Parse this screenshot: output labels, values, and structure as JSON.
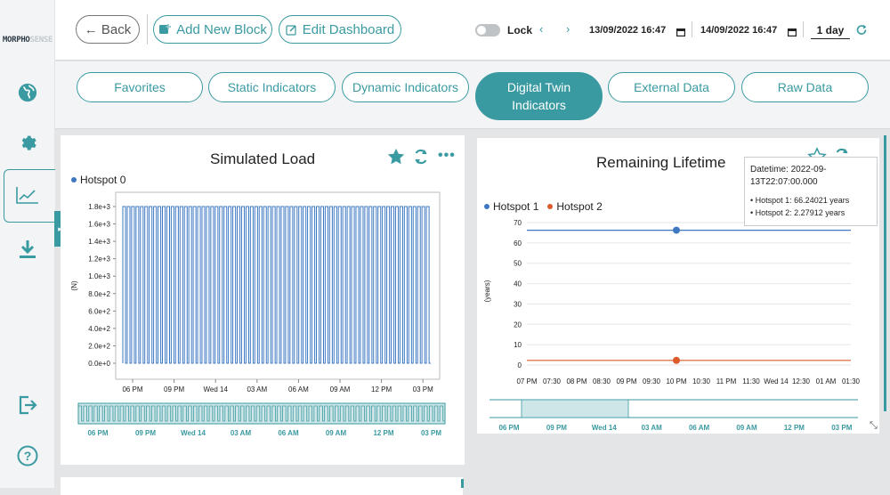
{
  "sidebar": {
    "logo_dark": "MORPHO",
    "logo_light": "SENSE",
    "icons": [
      "globe-icon",
      "gear-icon",
      "chart-line-icon",
      "download-icon",
      "logout-icon",
      "help-icon"
    ]
  },
  "topbar": {
    "back_label": "← Back",
    "add_block_label": "Add New Block",
    "edit_dashboard_label": "Edit Dashboard",
    "lock_label": "Lock",
    "start_datetime": "13/09/2022 16:47",
    "end_datetime": "14/09/2022 16:47",
    "range": "1 day"
  },
  "tabs": [
    "Favorites",
    "Static Indicators",
    "Dynamic Indicators",
    "Digital Twin Indicators",
    "External Data",
    "Raw Data"
  ],
  "active_tab": "Digital Twin Indicators",
  "colors": {
    "accent": "#3a9aa1",
    "series_blue": "#3e78c2",
    "series_orange": "#dd5a2b"
  },
  "card1": {
    "title": "Simulated Load",
    "legend": "Hotspot 0",
    "ylabel": "(N)"
  },
  "card2": {
    "title": "Remaining Lifetime",
    "legend": [
      "Hotspot 1",
      "Hotspot 2"
    ],
    "ylabel": "(years)",
    "tooltip": {
      "line1": "Datetime: 2022-09-",
      "line2": "13T22:07:00.000",
      "row1": "• Hotspot 1: 66.24021 years",
      "row2": "• Hotspot 2: 2.27912 years"
    }
  },
  "chart_data": [
    {
      "type": "line",
      "title": "Simulated Load",
      "series": [
        {
          "name": "Hotspot 0",
          "values_description": "square wave alternating between approx 0 and 1.8e+3, ~70 cycles over the day"
        }
      ],
      "y_min": 0,
      "y_max": 1800,
      "ylabel": "(N)",
      "yticks": [
        "0.0e+0",
        "2.0e+2",
        "4.0e+2",
        "6.0e+2",
        "8.0e+2",
        "1.0e+3",
        "1.2e+3",
        "1.4e+3",
        "1.6e+3",
        "1.8e+3"
      ],
      "ytick_values": [
        0,
        200,
        400,
        600,
        800,
        1000,
        1200,
        1400,
        1600,
        1800
      ],
      "xticks": [
        "06 PM",
        "09 PM",
        "Wed 14",
        "03 AM",
        "06 AM",
        "09 AM",
        "12 PM",
        "03 PM"
      ],
      "navigator_xticks": [
        "06 PM",
        "09 PM",
        "Wed 14",
        "03 AM",
        "06 AM",
        "09 AM",
        "12 PM",
        "03 PM"
      ],
      "high": 1800,
      "low": 0
    },
    {
      "type": "line",
      "title": "Remaining Lifetime",
      "series": [
        {
          "name": "Hotspot 1",
          "value": 66.24021
        },
        {
          "name": "Hotspot 2",
          "value": 2.27912
        }
      ],
      "y_min": 0,
      "y_max": 70,
      "ylabel": "(years)",
      "yticks": [
        "0",
        "10",
        "20",
        "30",
        "40",
        "50",
        "60",
        "70"
      ],
      "ytick_values": [
        0,
        10,
        20,
        30,
        40,
        50,
        60,
        70
      ],
      "xticks": [
        "07 PM",
        "07:30",
        "08 PM",
        "08:30",
        "09 PM",
        "09:30",
        "10 PM",
        "10:30",
        "11 PM",
        "11:30",
        "Wed 14",
        "12:30",
        "01 AM",
        "01:30"
      ],
      "navigator_xticks": [
        "06 PM",
        "09 PM",
        "Wed 14",
        "03 AM",
        "06 AM",
        "09 AM",
        "12 PM",
        "03 PM"
      ],
      "highlight_x": "10 PM"
    }
  ]
}
